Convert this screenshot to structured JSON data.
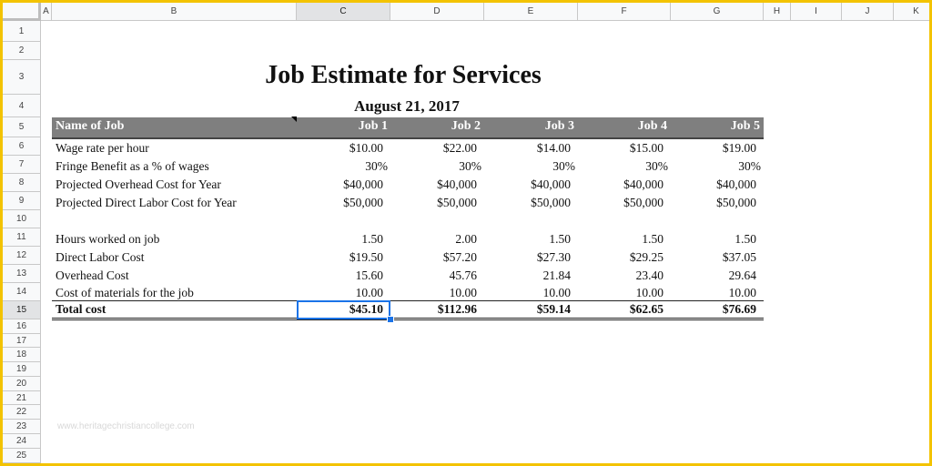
{
  "columns": [
    "A",
    "B",
    "C",
    "D",
    "E",
    "F",
    "G",
    "H",
    "I",
    "J",
    "K"
  ],
  "rows": [
    "1",
    "2",
    "3",
    "4",
    "5",
    "6",
    "7",
    "8",
    "9",
    "10",
    "11",
    "12",
    "13",
    "14",
    "15",
    "16",
    "17",
    "18",
    "19",
    "20",
    "21",
    "22",
    "23",
    "24",
    "25"
  ],
  "selected_column": "C",
  "selected_row": "15",
  "title": "Job Estimate for Services",
  "date": "August 21, 2017",
  "header": {
    "name_label": "Name of Job",
    "jobs": [
      "Job 1",
      "Job 2",
      "Job 3",
      "Job 4",
      "Job 5"
    ]
  },
  "table": [
    {
      "label": "Wage rate per hour",
      "values": [
        "$10.00",
        "$22.00",
        "$14.00",
        "$15.00",
        "$19.00"
      ]
    },
    {
      "label": "Fringe Benefit as a % of wages",
      "values": [
        "30%",
        "30%",
        "30%",
        "30%",
        "30%"
      ]
    },
    {
      "label": "Projected Overhead Cost for Year",
      "values": [
        "$40,000",
        "$40,000",
        "$40,000",
        "$40,000",
        "$40,000"
      ]
    },
    {
      "label": "Projected Direct Labor Cost for Year",
      "values": [
        "$50,000",
        "$50,000",
        "$50,000",
        "$50,000",
        "$50,000"
      ]
    },
    {
      "label": "Hours worked on job",
      "values": [
        "1.50",
        "2.00",
        "1.50",
        "1.50",
        "1.50"
      ]
    },
    {
      "label": "Direct Labor Cost",
      "values": [
        "$19.50",
        "$57.20",
        "$27.30",
        "$29.25",
        "$37.05"
      ]
    },
    {
      "label": "Overhead Cost",
      "values": [
        "15.60",
        "45.76",
        "21.84",
        "23.40",
        "29.64"
      ]
    },
    {
      "label": "Cost of materials for the job",
      "values": [
        "10.00",
        "10.00",
        "10.00",
        "10.00",
        "10.00"
      ]
    }
  ],
  "total": {
    "label": "Total cost",
    "values": [
      "$45.10",
      "$112.96",
      "$59.14",
      "$62.65",
      "$76.69"
    ]
  },
  "watermark": "www.heritagechristiancollege.com",
  "colors": {
    "header_band": "#7f7f7f",
    "selection": "#1a73e8",
    "frame": "#f3c300"
  }
}
